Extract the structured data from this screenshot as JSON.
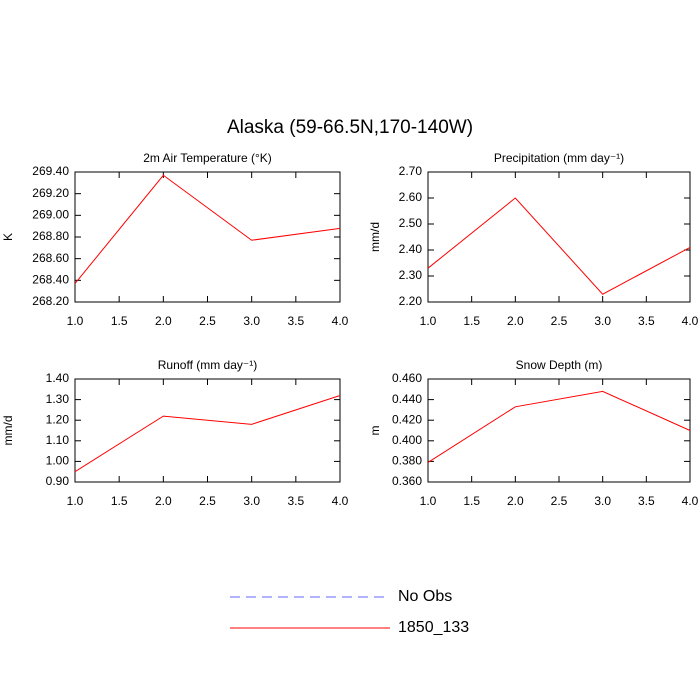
{
  "title": "Alaska (59-66.5N,170-140W)",
  "legend": [
    {
      "name": "No Obs",
      "color": "#0000ff",
      "dash": true
    },
    {
      "name": "1850_133",
      "color": "#ff0000",
      "dash": false
    }
  ],
  "chart_data": [
    {
      "type": "line",
      "title": "2m Air Temperature (°K)",
      "ylabel": "K",
      "x": [
        1,
        2,
        3,
        4
      ],
      "series": [
        {
          "color": "#ff0000",
          "values": [
            268.37,
            269.37,
            268.77,
            268.88
          ]
        }
      ],
      "xlim": [
        1,
        4
      ],
      "ylim": [
        268.2,
        269.4
      ],
      "xticks": [
        {
          "value": 1,
          "label": "1.0"
        },
        {
          "value": 1.5,
          "label": "1.5"
        },
        {
          "value": 2,
          "label": "2.0"
        },
        {
          "value": 2.5,
          "label": "2.5"
        },
        {
          "value": 3,
          "label": "3.0"
        },
        {
          "value": 3.5,
          "label": "3.5"
        },
        {
          "value": 4,
          "label": "4.0"
        }
      ],
      "yticks": [
        {
          "value": 268.2,
          "label": "268.20"
        },
        {
          "value": 268.4,
          "label": "268.40"
        },
        {
          "value": 268.6,
          "label": "268.60"
        },
        {
          "value": 268.8,
          "label": "268.80"
        },
        {
          "value": 269.0,
          "label": "269.00"
        },
        {
          "value": 269.2,
          "label": "269.20"
        },
        {
          "value": 269.4,
          "label": "269.40"
        }
      ]
    },
    {
      "type": "line",
      "title": "Precipitation (mm day⁻¹)",
      "ylabel": "mm/d",
      "x": [
        1,
        2,
        3,
        4
      ],
      "series": [
        {
          "color": "#ff0000",
          "values": [
            2.33,
            2.6,
            2.23,
            2.41
          ]
        }
      ],
      "xlim": [
        1,
        4
      ],
      "ylim": [
        2.2,
        2.7
      ],
      "xticks": [
        {
          "value": 1,
          "label": "1.0"
        },
        {
          "value": 1.5,
          "label": "1.5"
        },
        {
          "value": 2,
          "label": "2.0"
        },
        {
          "value": 2.5,
          "label": "2.5"
        },
        {
          "value": 3,
          "label": "3.0"
        },
        {
          "value": 3.5,
          "label": "3.5"
        },
        {
          "value": 4,
          "label": "4.0"
        }
      ],
      "yticks": [
        {
          "value": 2.2,
          "label": "2.20"
        },
        {
          "value": 2.3,
          "label": "2.30"
        },
        {
          "value": 2.4,
          "label": "2.40"
        },
        {
          "value": 2.5,
          "label": "2.50"
        },
        {
          "value": 2.6,
          "label": "2.60"
        },
        {
          "value": 2.7,
          "label": "2.70"
        }
      ]
    },
    {
      "type": "line",
      "title": "Runoff (mm day⁻¹)",
      "ylabel": "mm/d",
      "x": [
        1,
        2,
        3,
        4
      ],
      "series": [
        {
          "color": "#ff0000",
          "values": [
            0.95,
            1.22,
            1.18,
            1.32
          ]
        }
      ],
      "xlim": [
        1,
        4
      ],
      "ylim": [
        0.9,
        1.4
      ],
      "xticks": [
        {
          "value": 1,
          "label": "1.0"
        },
        {
          "value": 1.5,
          "label": "1.5"
        },
        {
          "value": 2,
          "label": "2.0"
        },
        {
          "value": 2.5,
          "label": "2.5"
        },
        {
          "value": 3,
          "label": "3.0"
        },
        {
          "value": 3.5,
          "label": "3.5"
        },
        {
          "value": 4,
          "label": "4.0"
        }
      ],
      "yticks": [
        {
          "value": 0.9,
          "label": "0.90"
        },
        {
          "value": 1.0,
          "label": "1.00"
        },
        {
          "value": 1.1,
          "label": "1.10"
        },
        {
          "value": 1.2,
          "label": "1.20"
        },
        {
          "value": 1.3,
          "label": "1.30"
        },
        {
          "value": 1.4,
          "label": "1.40"
        }
      ]
    },
    {
      "type": "line",
      "title": "Snow Depth (m)",
      "ylabel": "m",
      "x": [
        1,
        2,
        3,
        4
      ],
      "series": [
        {
          "color": "#ff0000",
          "values": [
            0.379,
            0.433,
            0.448,
            0.41
          ]
        }
      ],
      "xlim": [
        1,
        4
      ],
      "ylim": [
        0.36,
        0.46
      ],
      "xticks": [
        {
          "value": 1,
          "label": "1.0"
        },
        {
          "value": 1.5,
          "label": "1.5"
        },
        {
          "value": 2,
          "label": "2.0"
        },
        {
          "value": 2.5,
          "label": "2.5"
        },
        {
          "value": 3,
          "label": "3.0"
        },
        {
          "value": 3.5,
          "label": "3.5"
        },
        {
          "value": 4,
          "label": "4.0"
        }
      ],
      "yticks": [
        {
          "value": 0.36,
          "label": "0.360"
        },
        {
          "value": 0.38,
          "label": "0.380"
        },
        {
          "value": 0.4,
          "label": "0.400"
        },
        {
          "value": 0.42,
          "label": "0.420"
        },
        {
          "value": 0.44,
          "label": "0.440"
        },
        {
          "value": 0.46,
          "label": "0.460"
        }
      ]
    }
  ]
}
